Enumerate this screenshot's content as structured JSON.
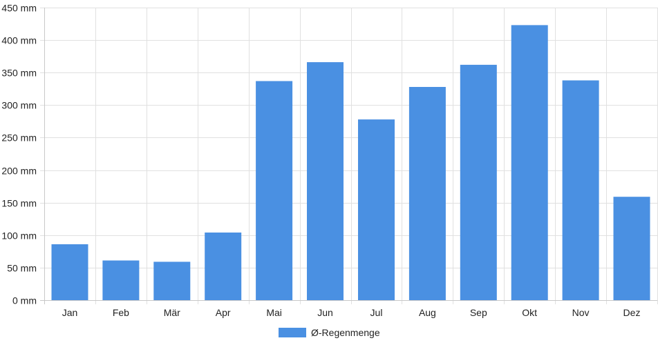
{
  "chart_data": {
    "type": "bar",
    "title": "",
    "xlabel": "",
    "ylabel": "",
    "categories": [
      "Jan",
      "Feb",
      "Mär",
      "Apr",
      "Mai",
      "Jun",
      "Jul",
      "Aug",
      "Sep",
      "Okt",
      "Nov",
      "Dez"
    ],
    "series": [
      {
        "name": "Ø-Regenmenge",
        "color": "#4a90e2",
        "values": [
          86,
          61,
          59,
          104,
          337,
          366,
          278,
          328,
          362,
          423,
          338,
          159
        ]
      }
    ],
    "ylim": [
      0,
      450
    ],
    "y_ticks": [
      0,
      50,
      100,
      150,
      200,
      250,
      300,
      350,
      400,
      450
    ],
    "y_tick_labels": [
      "0 mm",
      "50 mm",
      "100 mm",
      "150 mm",
      "200 mm",
      "250 mm",
      "300 mm",
      "350 mm",
      "400 mm",
      "450 mm"
    ],
    "grid": true,
    "legend_position": "bottom"
  }
}
